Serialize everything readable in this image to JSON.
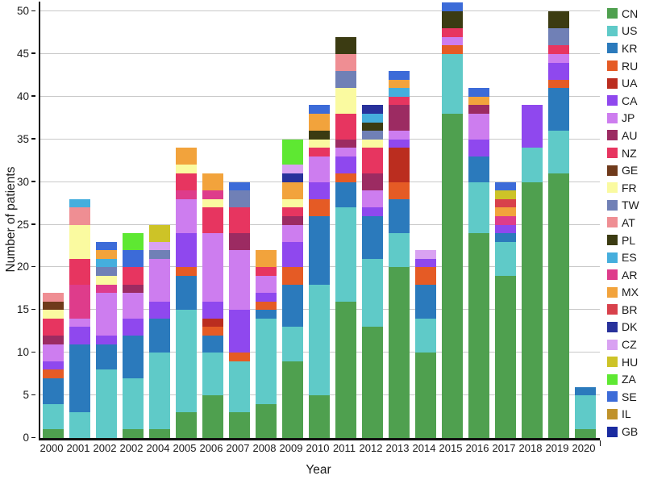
{
  "figure": {
    "background": "#ffffff"
  },
  "chart_data": {
    "type": "bar",
    "stacked": true,
    "title": "",
    "xlabel": "Year",
    "ylabel": "Number of patients",
    "ylim": [
      0,
      51
    ],
    "y_ticks": [
      0,
      5,
      10,
      15,
      20,
      25,
      30,
      35,
      40,
      45,
      50
    ],
    "grid": "horizontal",
    "legend_position": "right",
    "categories": [
      "2000",
      "2001",
      "2002",
      "2002",
      "2004",
      "2005",
      "2006",
      "2007",
      "2008",
      "2009",
      "2010",
      "2011",
      "2012",
      "2013",
      "2014",
      "2015",
      "2016",
      "2017",
      "2018",
      "2019",
      "2020"
    ],
    "colors": {
      "CN": "#4fa04f",
      "US": "#5fcac8",
      "KR": "#2b7abc",
      "RU": "#e55b25",
      "UA": "#bb2d1f",
      "CA": "#8f48ee",
      "JP": "#cd7def",
      "AU": "#9c2b62",
      "NZ": "#e73560",
      "GE": "#6f3a1b",
      "FR": "#fafaa0",
      "TW": "#7080b6",
      "AT": "#ef8e93",
      "PL": "#3b3b12",
      "ES": "#45aedd",
      "AR": "#de3c8b",
      "MX": "#f2a33c",
      "BR": "#d8414b",
      "DK": "#28319b",
      "CZ": "#d9a2f2",
      "HU": "#cdc327",
      "ZA": "#5ee832",
      "SE": "#3c6bd8",
      "IL": "#c0922b",
      "GB": "#1a2ba0"
    },
    "bars": [
      {
        "year": "2000",
        "total": 17,
        "segments": [
          [
            "CN",
            1
          ],
          [
            "US",
            3
          ],
          [
            "KR",
            3
          ],
          [
            "RU",
            1
          ],
          [
            "CA",
            1
          ],
          [
            "JP",
            2
          ],
          [
            "AU",
            1
          ],
          [
            "NZ",
            2
          ],
          [
            "FR",
            1
          ],
          [
            "GE",
            1
          ],
          [
            "AT",
            1
          ]
        ]
      },
      {
        "year": "2001",
        "total": 28,
        "segments": [
          [
            "US",
            3
          ],
          [
            "KR",
            8
          ],
          [
            "CA",
            2
          ],
          [
            "JP",
            1
          ],
          [
            "AR",
            4
          ],
          [
            "NZ",
            3
          ],
          [
            "FR",
            4
          ],
          [
            "AT",
            2
          ],
          [
            "ES",
            1
          ]
        ]
      },
      {
        "year": "2002",
        "total": 23,
        "segments": [
          [
            "US",
            8
          ],
          [
            "KR",
            3
          ],
          [
            "CA",
            1
          ],
          [
            "JP",
            5
          ],
          [
            "AR",
            1
          ],
          [
            "FR",
            1
          ],
          [
            "TW",
            1
          ],
          [
            "ES",
            1
          ],
          [
            "MX",
            1
          ],
          [
            "SE",
            1
          ]
        ]
      },
      {
        "year": "2002",
        "total": 24,
        "segments": [
          [
            "CN",
            1
          ],
          [
            "US",
            6
          ],
          [
            "KR",
            5
          ],
          [
            "CA",
            2
          ],
          [
            "JP",
            3
          ],
          [
            "AU",
            1
          ],
          [
            "NZ",
            2
          ],
          [
            "SE",
            2
          ],
          [
            "ZA",
            2
          ]
        ]
      },
      {
        "year": "2004",
        "total": 25,
        "segments": [
          [
            "CN",
            1
          ],
          [
            "US",
            9
          ],
          [
            "KR",
            4
          ],
          [
            "CA",
            2
          ],
          [
            "JP",
            5
          ],
          [
            "TW",
            1
          ],
          [
            "CZ",
            1
          ],
          [
            "HU",
            2
          ]
        ]
      },
      {
        "year": "2005",
        "total": 34,
        "segments": [
          [
            "CN",
            3
          ],
          [
            "US",
            12
          ],
          [
            "KR",
            4
          ],
          [
            "RU",
            1
          ],
          [
            "CA",
            4
          ],
          [
            "JP",
            4
          ],
          [
            "AR",
            1
          ],
          [
            "NZ",
            2
          ],
          [
            "FR",
            1
          ],
          [
            "MX",
            2
          ]
        ]
      },
      {
        "year": "2006",
        "total": 31,
        "segments": [
          [
            "CN",
            5
          ],
          [
            "US",
            5
          ],
          [
            "KR",
            2
          ],
          [
            "RU",
            1
          ],
          [
            "UA",
            1
          ],
          [
            "CA",
            2
          ],
          [
            "JP",
            8
          ],
          [
            "NZ",
            3
          ],
          [
            "FR",
            1
          ],
          [
            "AR",
            1
          ],
          [
            "MX",
            2
          ]
        ]
      },
      {
        "year": "2007",
        "total": 30,
        "segments": [
          [
            "CN",
            3
          ],
          [
            "US",
            6
          ],
          [
            "RU",
            1
          ],
          [
            "CA",
            5
          ],
          [
            "JP",
            7
          ],
          [
            "AU",
            2
          ],
          [
            "NZ",
            3
          ],
          [
            "TW",
            2
          ],
          [
            "SE",
            1
          ]
        ]
      },
      {
        "year": "2008",
        "total": 22,
        "segments": [
          [
            "CN",
            4
          ],
          [
            "US",
            10
          ],
          [
            "KR",
            1
          ],
          [
            "RU",
            1
          ],
          [
            "CA",
            1
          ],
          [
            "JP",
            2
          ],
          [
            "NZ",
            1
          ],
          [
            "MX",
            2
          ]
        ]
      },
      {
        "year": "2009",
        "total": 35,
        "segments": [
          [
            "CN",
            9
          ],
          [
            "US",
            4
          ],
          [
            "KR",
            5
          ],
          [
            "RU",
            2
          ],
          [
            "CA",
            3
          ],
          [
            "JP",
            2
          ],
          [
            "AU",
            1
          ],
          [
            "NZ",
            1
          ],
          [
            "FR",
            1
          ],
          [
            "MX",
            2
          ],
          [
            "DK",
            1
          ],
          [
            "CZ",
            1
          ],
          [
            "ZA",
            3
          ]
        ]
      },
      {
        "year": "2010",
        "total": 39,
        "segments": [
          [
            "CN",
            5
          ],
          [
            "US",
            13
          ],
          [
            "KR",
            8
          ],
          [
            "RU",
            2
          ],
          [
            "CA",
            2
          ],
          [
            "JP",
            3
          ],
          [
            "NZ",
            1
          ],
          [
            "FR",
            1
          ],
          [
            "PL",
            1
          ],
          [
            "MX",
            2
          ],
          [
            "SE",
            1
          ]
        ]
      },
      {
        "year": "2011",
        "total": 47,
        "segments": [
          [
            "CN",
            16
          ],
          [
            "US",
            11
          ],
          [
            "KR",
            3
          ],
          [
            "RU",
            1
          ],
          [
            "CA",
            2
          ],
          [
            "JP",
            1
          ],
          [
            "AU",
            1
          ],
          [
            "NZ",
            3
          ],
          [
            "FR",
            3
          ],
          [
            "TW",
            2
          ],
          [
            "AT",
            2
          ],
          [
            "PL",
            2
          ]
        ]
      },
      {
        "year": "2012",
        "total": 39,
        "segments": [
          [
            "CN",
            13
          ],
          [
            "US",
            8
          ],
          [
            "KR",
            5
          ],
          [
            "CA",
            1
          ],
          [
            "JP",
            2
          ],
          [
            "AU",
            2
          ],
          [
            "NZ",
            3
          ],
          [
            "FR",
            1
          ],
          [
            "TW",
            1
          ],
          [
            "PL",
            1
          ],
          [
            "ES",
            1
          ],
          [
            "DK",
            1
          ]
        ]
      },
      {
        "year": "2013",
        "total": 43,
        "segments": [
          [
            "CN",
            20
          ],
          [
            "US",
            4
          ],
          [
            "KR",
            4
          ],
          [
            "RU",
            2
          ],
          [
            "UA",
            4
          ],
          [
            "CA",
            1
          ],
          [
            "JP",
            1
          ],
          [
            "AU",
            3
          ],
          [
            "NZ",
            1
          ],
          [
            "ES",
            1
          ],
          [
            "MX",
            1
          ],
          [
            "SE",
            1
          ]
        ]
      },
      {
        "year": "2014",
        "total": 22,
        "segments": [
          [
            "CN",
            10
          ],
          [
            "US",
            4
          ],
          [
            "KR",
            4
          ],
          [
            "RU",
            2
          ],
          [
            "CA",
            1
          ],
          [
            "CZ",
            1
          ]
        ]
      },
      {
        "year": "2015",
        "total": 51,
        "segments": [
          [
            "CN",
            38
          ],
          [
            "US",
            7
          ],
          [
            "RU",
            1
          ],
          [
            "JP",
            1
          ],
          [
            "NZ",
            1
          ],
          [
            "PL",
            2
          ],
          [
            "SE",
            1
          ]
        ]
      },
      {
        "year": "2016",
        "total": 41,
        "segments": [
          [
            "CN",
            24
          ],
          [
            "US",
            6
          ],
          [
            "KR",
            3
          ],
          [
            "CA",
            2
          ],
          [
            "JP",
            3
          ],
          [
            "AU",
            1
          ],
          [
            "MX",
            1
          ],
          [
            "SE",
            1
          ]
        ]
      },
      {
        "year": "2017",
        "total": 30,
        "segments": [
          [
            "CN",
            19
          ],
          [
            "US",
            4
          ],
          [
            "KR",
            1
          ],
          [
            "CA",
            1
          ],
          [
            "AR",
            1
          ],
          [
            "MX",
            1
          ],
          [
            "BR",
            1
          ],
          [
            "HU",
            1
          ],
          [
            "SE",
            1
          ]
        ]
      },
      {
        "year": "2018",
        "total": 39,
        "segments": [
          [
            "CN",
            30
          ],
          [
            "US",
            4
          ],
          [
            "CA",
            5
          ]
        ]
      },
      {
        "year": "2019",
        "total": 50,
        "segments": [
          [
            "CN",
            31
          ],
          [
            "US",
            5
          ],
          [
            "KR",
            5
          ],
          [
            "RU",
            1
          ],
          [
            "CA",
            2
          ],
          [
            "JP",
            1
          ],
          [
            "NZ",
            1
          ],
          [
            "TW",
            2
          ],
          [
            "PL",
            2
          ]
        ]
      },
      {
        "year": "2020",
        "total": 6,
        "segments": [
          [
            "CN",
            1
          ],
          [
            "US",
            4
          ],
          [
            "KR",
            1
          ]
        ]
      }
    ]
  },
  "legend": {
    "entries": [
      {
        "code": "CN"
      },
      {
        "code": "US"
      },
      {
        "code": "KR"
      },
      {
        "code": "RU"
      },
      {
        "code": "UA"
      },
      {
        "code": "CA"
      },
      {
        "code": "JP"
      },
      {
        "code": "AU"
      },
      {
        "code": "NZ"
      },
      {
        "code": "GE"
      },
      {
        "code": "FR"
      },
      {
        "code": "TW"
      },
      {
        "code": "AT"
      },
      {
        "code": "PL"
      },
      {
        "code": "ES"
      },
      {
        "code": "AR"
      },
      {
        "code": "MX"
      },
      {
        "code": "BR"
      },
      {
        "code": "DK"
      },
      {
        "code": "CZ"
      },
      {
        "code": "HU"
      },
      {
        "code": "ZA"
      },
      {
        "code": "SE"
      },
      {
        "code": "IL"
      },
      {
        "code": "GB"
      }
    ]
  }
}
